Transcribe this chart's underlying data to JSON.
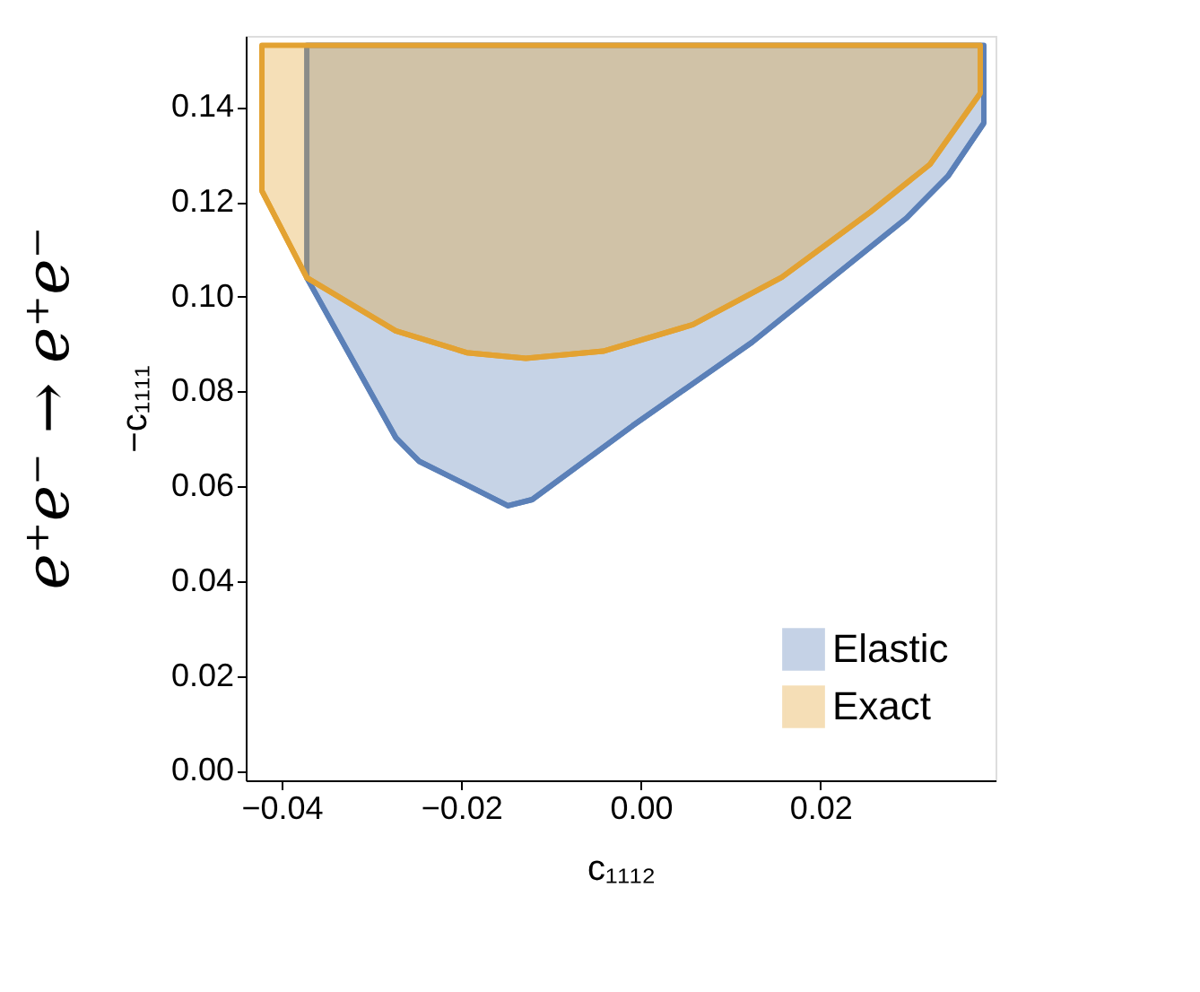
{
  "chart_data": {
    "type": "line",
    "title": "e⁺e⁻ → e⁺e⁻",
    "xlabel": "c₁₁₁₂",
    "ylabel": "−c₁₁₁₁",
    "series": [
      {
        "name": "Elastic",
        "color": "#5b80b8",
        "x": [
          -0.0372,
          -0.0273,
          -0.0247,
          -0.0194,
          -0.0148,
          -0.0121,
          -0.0009,
          0.0124,
          0.0296,
          0.0342,
          0.0382
        ],
        "values": [
          0.104,
          0.0703,
          0.0653,
          0.0603,
          0.0559,
          0.0572,
          0.0728,
          0.0904,
          0.1166,
          0.1254,
          0.1366
        ],
        "lower": [
          0.104,
          0.0703,
          0.0653,
          0.0603,
          0.0559,
          0.0572,
          0.0728,
          0.0904,
          0.1166,
          0.1254,
          0.1366
        ],
        "upper": [
          0.153,
          0.153,
          0.153,
          0.153,
          0.153,
          0.153,
          0.153,
          0.153,
          0.153,
          0.153,
          0.153
        ]
      },
      {
        "name": "Exact",
        "color": "#e3a232",
        "x": [
          -0.0422,
          -0.0372,
          -0.0273,
          -0.0194,
          -0.0128,
          -0.0042,
          0.0058,
          0.0157,
          0.0256,
          0.0322,
          0.0378
        ],
        "values": [
          0.1223,
          0.104,
          0.0928,
          0.0882,
          0.087,
          0.0885,
          0.0941,
          0.1041,
          0.1179,
          0.1279,
          0.1429
        ],
        "lower": [
          0.1223,
          0.104,
          0.0928,
          0.0882,
          0.087,
          0.0885,
          0.0941,
          0.1041,
          0.1179,
          0.1279,
          0.1429
        ],
        "upper": [
          0.153,
          0.153,
          0.153,
          0.153,
          0.153,
          0.153,
          0.153,
          0.153,
          0.153,
          0.153,
          0.153
        ]
      }
    ],
    "xlim": [
      -0.044,
      0.0395
    ],
    "ylim": [
      -0.002,
      0.155
    ],
    "xticks": [
      {
        "value": -0.04,
        "label": "−0.04"
      },
      {
        "value": -0.02,
        "label": "−0.02"
      },
      {
        "value": 0,
        "label": "0.00"
      },
      {
        "value": 0.02,
        "label": "0.02"
      }
    ],
    "yticks": [
      {
        "value": 0,
        "label": "0.00"
      },
      {
        "value": 0.02,
        "label": "0.02"
      },
      {
        "value": 0.04,
        "label": "0.04"
      },
      {
        "value": 0.06,
        "label": "0.06"
      },
      {
        "value": 0.08,
        "label": "0.08"
      },
      {
        "value": 0.1,
        "label": "0.10"
      },
      {
        "value": 0.12,
        "label": "0.12"
      },
      {
        "value": 0.14,
        "label": "0.14"
      }
    ],
    "legend": "bottom right"
  }
}
